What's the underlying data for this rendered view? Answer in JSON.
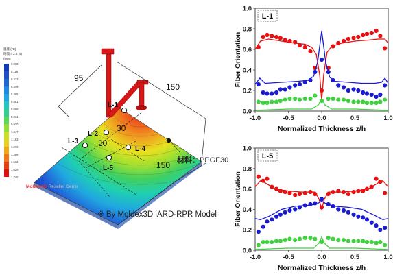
{
  "left_figure": {
    "legend_header_lines": [
      "温度 (°C)",
      "時間 = 2.5 (s)",
      "(mm)"
    ],
    "legend_ticks": [
      "1.745",
      "1.629",
      "1.512",
      "1.396",
      "1.279",
      "1.163",
      "1.047",
      "0.930",
      "0.814",
      "0.698",
      "0.581",
      "0.465",
      "0.349",
      "0.233",
      "0.116",
      "0.000"
    ],
    "watermark_brand": "Moldex3D",
    "watermark_suffix": "Reseller Demo",
    "dim_95": "95",
    "dim_150_top": "150",
    "dim_150_bottom": "150",
    "dim_30_a": "30",
    "dim_30_b": "30",
    "points": [
      "L-1",
      "L-2",
      "L-3",
      "L-4",
      "L-5"
    ],
    "material_label": "材料：",
    "material_value": "PPGF30",
    "caption": "※ By Moldex3D iARD-RPR Model"
  },
  "chart_data": [
    {
      "type": "scatter",
      "label_box": "L-1",
      "xlabel": "Normalized Thickness z/h",
      "ylabel": "Fiber Orientation",
      "xlim": [
        -1.0,
        1.0
      ],
      "ylim": [
        0,
        1.0
      ],
      "xticks": [
        "-1.0",
        "-0.5",
        "0.0",
        "0.5",
        "1.0"
      ],
      "yticks": [
        "0.0",
        "0.2",
        "0.4",
        "0.6",
        "0.8",
        "1.0"
      ],
      "colors": {
        "red": "#e81010",
        "blue": "#1a1ad0",
        "green": "#40d040"
      },
      "series": [
        {
          "color": "red",
          "points": [
            [
              -0.95,
              0.62
            ],
            [
              -0.88,
              0.72
            ],
            [
              -0.82,
              0.74
            ],
            [
              -0.75,
              0.73
            ],
            [
              -0.68,
              0.72
            ],
            [
              -0.62,
              0.71
            ],
            [
              -0.55,
              0.69
            ],
            [
              -0.48,
              0.68
            ],
            [
              -0.4,
              0.67
            ],
            [
              -0.33,
              0.64
            ],
            [
              -0.25,
              0.62
            ],
            [
              -0.17,
              0.58
            ],
            [
              -0.1,
              0.42
            ],
            [
              0.0,
              0.2
            ],
            [
              0.1,
              0.42
            ],
            [
              0.17,
              0.63
            ],
            [
              0.25,
              0.66
            ],
            [
              0.33,
              0.68
            ],
            [
              0.4,
              0.7
            ],
            [
              0.48,
              0.71
            ],
            [
              0.55,
              0.72
            ],
            [
              0.62,
              0.74
            ],
            [
              0.68,
              0.75
            ],
            [
              0.75,
              0.76
            ],
            [
              0.82,
              0.78
            ],
            [
              0.88,
              0.73
            ],
            [
              0.95,
              0.61
            ]
          ],
          "line": [
            [
              -1.0,
              0.6
            ],
            [
              -0.92,
              0.68
            ],
            [
              -0.8,
              0.7
            ],
            [
              -0.6,
              0.68
            ],
            [
              -0.4,
              0.66
            ],
            [
              -0.25,
              0.65
            ],
            [
              -0.15,
              0.62
            ],
            [
              -0.08,
              0.55
            ],
            [
              -0.03,
              0.35
            ],
            [
              0.0,
              0.1
            ],
            [
              0.03,
              0.35
            ],
            [
              0.08,
              0.57
            ],
            [
              0.15,
              0.63
            ],
            [
              0.3,
              0.66
            ],
            [
              0.5,
              0.68
            ],
            [
              0.7,
              0.69
            ],
            [
              0.85,
              0.7
            ],
            [
              0.95,
              0.7
            ],
            [
              1.0,
              0.66
            ]
          ]
        },
        {
          "color": "blue",
          "points": [
            [
              -0.95,
              0.26
            ],
            [
              -0.88,
              0.18
            ],
            [
              -0.82,
              0.17
            ],
            [
              -0.75,
              0.17
            ],
            [
              -0.68,
              0.18
            ],
            [
              -0.62,
              0.21
            ],
            [
              -0.55,
              0.21
            ],
            [
              -0.48,
              0.23
            ],
            [
              -0.4,
              0.25
            ],
            [
              -0.33,
              0.26
            ],
            [
              -0.25,
              0.28
            ],
            [
              -0.17,
              0.3
            ],
            [
              -0.1,
              0.38
            ],
            [
              0.0,
              0.5
            ],
            [
              0.1,
              0.38
            ],
            [
              0.17,
              0.3
            ],
            [
              0.25,
              0.25
            ],
            [
              0.33,
              0.23
            ],
            [
              0.4,
              0.2
            ],
            [
              0.48,
              0.21
            ],
            [
              0.55,
              0.2
            ],
            [
              0.62,
              0.18
            ],
            [
              0.68,
              0.17
            ],
            [
              0.75,
              0.16
            ],
            [
              0.82,
              0.14
            ],
            [
              0.88,
              0.16
            ],
            [
              0.95,
              0.25
            ]
          ],
          "line": [
            [
              -1.0,
              0.26
            ],
            [
              -0.93,
              0.32
            ],
            [
              -0.85,
              0.27
            ],
            [
              -0.6,
              0.28
            ],
            [
              -0.35,
              0.29
            ],
            [
              -0.2,
              0.3
            ],
            [
              -0.12,
              0.34
            ],
            [
              -0.06,
              0.48
            ],
            [
              0.0,
              0.78
            ],
            [
              0.06,
              0.48
            ],
            [
              0.12,
              0.33
            ],
            [
              0.2,
              0.29
            ],
            [
              0.4,
              0.28
            ],
            [
              0.6,
              0.27
            ],
            [
              0.8,
              0.27
            ],
            [
              0.9,
              0.28
            ],
            [
              0.95,
              0.32
            ],
            [
              1.0,
              0.27
            ]
          ]
        },
        {
          "color": "green",
          "points": [
            [
              -0.95,
              0.09
            ],
            [
              -0.88,
              0.08
            ],
            [
              -0.82,
              0.08
            ],
            [
              -0.75,
              0.09
            ],
            [
              -0.68,
              0.09
            ],
            [
              -0.62,
              0.1
            ],
            [
              -0.55,
              0.11
            ],
            [
              -0.48,
              0.12
            ],
            [
              -0.4,
              0.12
            ],
            [
              -0.33,
              0.11
            ],
            [
              -0.25,
              0.12
            ],
            [
              -0.17,
              0.12
            ],
            [
              -0.1,
              0.15
            ],
            [
              0.0,
              0.1
            ],
            [
              0.1,
              0.12
            ],
            [
              0.17,
              0.12
            ],
            [
              0.25,
              0.11
            ],
            [
              0.33,
              0.11
            ],
            [
              0.4,
              0.1
            ],
            [
              0.48,
              0.09
            ],
            [
              0.55,
              0.09
            ],
            [
              0.62,
              0.09
            ],
            [
              0.68,
              0.08
            ],
            [
              0.75,
              0.08
            ],
            [
              0.82,
              0.08
            ],
            [
              0.88,
              0.09
            ],
            [
              0.95,
              0.11
            ]
          ],
          "line": [
            [
              -1.0,
              0.01
            ],
            [
              -0.9,
              0.01
            ],
            [
              -0.5,
              0.02
            ],
            [
              -0.15,
              0.02
            ],
            [
              -0.05,
              0.06
            ],
            [
              0.0,
              0.12
            ],
            [
              0.05,
              0.06
            ],
            [
              0.15,
              0.02
            ],
            [
              0.5,
              0.02
            ],
            [
              0.9,
              0.01
            ],
            [
              1.0,
              0.01
            ]
          ]
        }
      ]
    },
    {
      "type": "scatter",
      "label_box": "L-5",
      "xlabel": "Normalized Thickness z/h",
      "ylabel": "Fiber Orientation",
      "xlim": [
        -1.0,
        1.0
      ],
      "ylim": [
        0,
        1.0
      ],
      "xticks": [
        "-1.0",
        "-0.5",
        "0.0",
        "0.5",
        "1.0"
      ],
      "yticks": [
        "0.0",
        "0.2",
        "0.4",
        "0.6",
        "0.8",
        "1.0"
      ],
      "colors": {
        "red": "#e81010",
        "blue": "#1a1ad0",
        "green": "#40d040"
      },
      "series": [
        {
          "color": "red",
          "points": [
            [
              -0.95,
              0.72
            ],
            [
              -0.88,
              0.68
            ],
            [
              -0.82,
              0.7
            ],
            [
              -0.75,
              0.62
            ],
            [
              -0.68,
              0.6
            ],
            [
              -0.62,
              0.58
            ],
            [
              -0.55,
              0.57
            ],
            [
              -0.48,
              0.56
            ],
            [
              -0.4,
              0.54
            ],
            [
              -0.33,
              0.55
            ],
            [
              -0.25,
              0.56
            ],
            [
              -0.17,
              0.57
            ],
            [
              -0.1,
              0.55
            ],
            [
              0.0,
              0.42
            ],
            [
              0.1,
              0.55
            ],
            [
              0.17,
              0.57
            ],
            [
              0.25,
              0.58
            ],
            [
              0.33,
              0.57
            ],
            [
              0.4,
              0.55
            ],
            [
              0.48,
              0.57
            ],
            [
              0.55,
              0.58
            ],
            [
              0.62,
              0.58
            ],
            [
              0.68,
              0.6
            ],
            [
              0.75,
              0.62
            ],
            [
              0.82,
              0.7
            ],
            [
              0.88,
              0.67
            ],
            [
              0.95,
              0.56
            ]
          ],
          "line": [
            [
              -1.0,
              0.62
            ],
            [
              -0.92,
              0.68
            ],
            [
              -0.85,
              0.66
            ],
            [
              -0.7,
              0.6
            ],
            [
              -0.5,
              0.58
            ],
            [
              -0.3,
              0.57
            ],
            [
              -0.1,
              0.57
            ],
            [
              -0.04,
              0.5
            ],
            [
              0.0,
              0.4
            ],
            [
              0.04,
              0.5
            ],
            [
              0.1,
              0.57
            ],
            [
              0.3,
              0.57
            ],
            [
              0.5,
              0.58
            ],
            [
              0.7,
              0.6
            ],
            [
              0.85,
              0.66
            ],
            [
              0.92,
              0.68
            ],
            [
              1.0,
              0.62
            ]
          ]
        },
        {
          "color": "blue",
          "points": [
            [
              -0.95,
              0.18
            ],
            [
              -0.88,
              0.23
            ],
            [
              -0.82,
              0.28
            ],
            [
              -0.75,
              0.3
            ],
            [
              -0.68,
              0.33
            ],
            [
              -0.62,
              0.35
            ],
            [
              -0.55,
              0.37
            ],
            [
              -0.48,
              0.39
            ],
            [
              -0.4,
              0.4
            ],
            [
              -0.33,
              0.42
            ],
            [
              -0.25,
              0.44
            ],
            [
              -0.17,
              0.45
            ],
            [
              -0.1,
              0.46
            ],
            [
              0.0,
              0.5
            ],
            [
              0.1,
              0.45
            ],
            [
              0.17,
              0.43
            ],
            [
              0.25,
              0.4
            ],
            [
              0.33,
              0.39
            ],
            [
              0.4,
              0.37
            ],
            [
              0.48,
              0.35
            ],
            [
              0.55,
              0.33
            ],
            [
              0.62,
              0.32
            ],
            [
              0.68,
              0.3
            ],
            [
              0.75,
              0.27
            ],
            [
              0.82,
              0.24
            ],
            [
              0.88,
              0.2
            ],
            [
              0.95,
              0.22
            ]
          ],
          "line": [
            [
              -1.0,
              0.31
            ],
            [
              -0.92,
              0.3
            ],
            [
              -0.8,
              0.33
            ],
            [
              -0.6,
              0.4
            ],
            [
              -0.4,
              0.43
            ],
            [
              -0.2,
              0.44
            ],
            [
              -0.08,
              0.45
            ],
            [
              -0.03,
              0.47
            ],
            [
              0.0,
              0.48
            ],
            [
              0.03,
              0.47
            ],
            [
              0.08,
              0.45
            ],
            [
              0.2,
              0.43
            ],
            [
              0.4,
              0.42
            ],
            [
              0.6,
              0.4
            ],
            [
              0.8,
              0.34
            ],
            [
              0.92,
              0.3
            ],
            [
              1.0,
              0.31
            ]
          ]
        },
        {
          "color": "green",
          "points": [
            [
              -0.95,
              0.05
            ],
            [
              -0.88,
              0.08
            ],
            [
              -0.82,
              0.08
            ],
            [
              -0.75,
              0.08
            ],
            [
              -0.68,
              0.09
            ],
            [
              -0.62,
              0.09
            ],
            [
              -0.55,
              0.1
            ],
            [
              -0.48,
              0.11
            ],
            [
              -0.4,
              0.1
            ],
            [
              -0.33,
              0.11
            ],
            [
              -0.25,
              0.12
            ],
            [
              -0.17,
              0.12
            ],
            [
              -0.1,
              0.11
            ],
            [
              0.0,
              0.08
            ],
            [
              0.1,
              0.12
            ],
            [
              0.17,
              0.11
            ],
            [
              0.25,
              0.1
            ],
            [
              0.33,
              0.1
            ],
            [
              0.4,
              0.09
            ],
            [
              0.48,
              0.09
            ],
            [
              0.55,
              0.09
            ],
            [
              0.62,
              0.09
            ],
            [
              0.68,
              0.08
            ],
            [
              0.75,
              0.08
            ],
            [
              0.82,
              0.07
            ],
            [
              0.88,
              0.08
            ],
            [
              0.95,
              0.05
            ]
          ],
          "line": [
            [
              -1.0,
              0.01
            ],
            [
              -0.9,
              0.01
            ],
            [
              -0.5,
              0.02
            ],
            [
              -0.12,
              0.02
            ],
            [
              -0.04,
              0.07
            ],
            [
              0.0,
              0.13
            ],
            [
              0.04,
              0.07
            ],
            [
              0.12,
              0.02
            ],
            [
              0.5,
              0.02
            ],
            [
              0.9,
              0.01
            ],
            [
              1.0,
              0.01
            ]
          ]
        }
      ]
    }
  ]
}
